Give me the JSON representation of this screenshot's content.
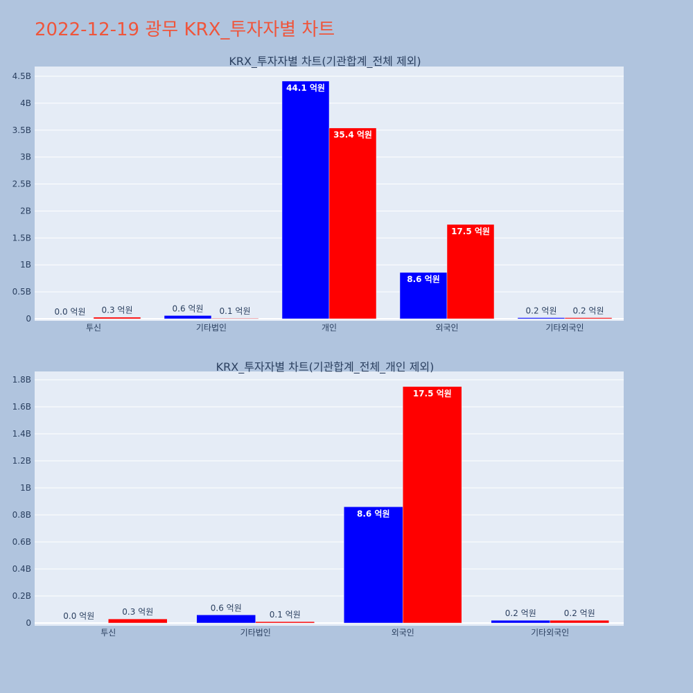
{
  "title": "2022-12-19 광무 KRX_투자자별 차트",
  "colors": {
    "background": "#b0c4de",
    "plot_bg": "#e5ecf6",
    "title": "#ef553b",
    "buy": "#0000ff",
    "sell": "#ff0000",
    "text": "#2a3f5f"
  },
  "chart_data": [
    {
      "type": "bar",
      "title": "KRX_투자자별 차트(기관합계_전체 제외)",
      "categories": [
        "투신",
        "기타법인",
        "개인",
        "외국인",
        "기타외국인"
      ],
      "ylim": [
        0,
        4500000000
      ],
      "yticks": [
        0,
        500000000,
        1000000000,
        1500000000,
        2000000000,
        2500000000,
        3000000000,
        3500000000,
        4000000000,
        4500000000
      ],
      "ytick_labels": [
        "0",
        "0.5B",
        "1B",
        "1.5B",
        "2B",
        "2.5B",
        "3B",
        "3.5B",
        "4B",
        "4.5B"
      ],
      "grid": true,
      "series": [
        {
          "color": "#0000ff",
          "values": [
            0,
            60000000,
            4410000000,
            860000000,
            20000000
          ],
          "labels": [
            "0.0 억원",
            "0.6 억원",
            "44.1 억원",
            "8.6 억원",
            "0.2 억원"
          ]
        },
        {
          "color": "#ff0000",
          "values": [
            30000000,
            10000000,
            3540000000,
            1750000000,
            20000000
          ],
          "labels": [
            "0.3 억원",
            "0.1 억원",
            "35.4 억원",
            "17.5 억원",
            "0.2 억원"
          ]
        }
      ]
    },
    {
      "type": "bar",
      "title": "KRX_투자자별 차트(기관합계_전체_개인 제외)",
      "categories": [
        "투신",
        "기타법인",
        "외국인",
        "기타외국인"
      ],
      "ylim": [
        0,
        1800000000
      ],
      "yticks": [
        0,
        200000000,
        400000000,
        600000000,
        800000000,
        1000000000,
        1200000000,
        1400000000,
        1600000000,
        1800000000
      ],
      "ytick_labels": [
        "0",
        "0.2B",
        "0.4B",
        "0.6B",
        "0.8B",
        "1B",
        "1.2B",
        "1.4B",
        "1.6B",
        "1.8B"
      ],
      "grid": true,
      "series": [
        {
          "color": "#0000ff",
          "values": [
            0,
            60000000,
            860000000,
            20000000
          ],
          "labels": [
            "0.0 억원",
            "0.6 억원",
            "8.6 억원",
            "0.2 억원"
          ]
        },
        {
          "color": "#ff0000",
          "values": [
            30000000,
            10000000,
            1750000000,
            20000000
          ],
          "labels": [
            "0.3 억원",
            "0.1 억원",
            "17.5 억원",
            "0.2 억원"
          ]
        }
      ]
    }
  ]
}
